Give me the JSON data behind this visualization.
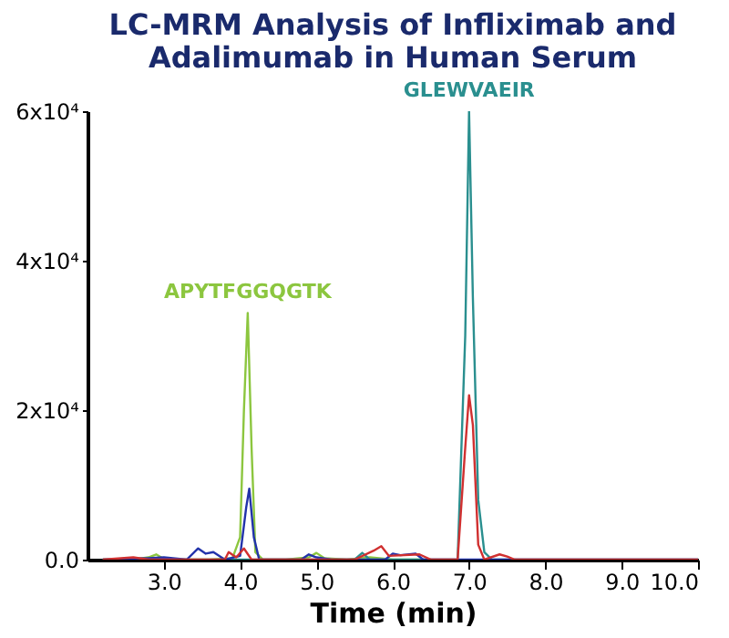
{
  "chart_data": {
    "type": "line",
    "title": "LC-MRM Analysis of Infliximab and Adalimumab in Human Serum",
    "xlabel": "Time (min)",
    "xlim": [
      2.0,
      10.0
    ],
    "ylim": [
      0,
      60000
    ],
    "xticks": [
      {
        "value": 3,
        "label": "3.0"
      },
      {
        "value": 4,
        "label": "4.0"
      },
      {
        "value": 5,
        "label": "5.0"
      },
      {
        "value": 6,
        "label": "6.0"
      },
      {
        "value": 7,
        "label": "7.0"
      },
      {
        "value": 8,
        "label": "8.0"
      },
      {
        "value": 9,
        "label": "9.0"
      },
      {
        "value": 10,
        "label": "10.0"
      }
    ],
    "yticks": [
      {
        "value": 0,
        "label": "0.0"
      },
      {
        "value": 20000,
        "label": "2x10⁴"
      },
      {
        "value": 40000,
        "label": "4x10⁴"
      },
      {
        "value": 60000,
        "label": "6x10⁴"
      }
    ],
    "grid": false,
    "legend": false,
    "marker": "none",
    "line_style": "solid",
    "series": [
      {
        "color": "#8cc63f",
        "x": [
          2.2,
          2.6,
          2.8,
          2.9,
          3.0,
          3.3,
          3.6,
          3.9,
          4.0,
          4.05,
          4.1,
          4.15,
          4.2,
          4.3,
          4.6,
          4.9,
          5.0,
          5.1,
          5.4,
          5.7,
          6.0,
          6.5
        ],
        "values": [
          0,
          0,
          300,
          700,
          100,
          0,
          0,
          200,
          3000,
          20000,
          33000,
          15000,
          1000,
          0,
          0,
          300,
          900,
          200,
          0,
          300,
          0,
          0
        ]
      },
      {
        "color": "#2a8f8f",
        "x": [
          2.2,
          5.5,
          5.6,
          5.7,
          6.85,
          6.95,
          7.0,
          7.05,
          7.12,
          7.2,
          7.3,
          10.0
        ],
        "values": [
          0,
          0,
          900,
          0,
          0,
          30000,
          60000,
          35000,
          8000,
          1000,
          0,
          0
        ]
      },
      {
        "color": "#2233aa",
        "x": [
          2.2,
          2.8,
          3.0,
          3.3,
          3.45,
          3.55,
          3.65,
          3.8,
          4.0,
          4.08,
          4.12,
          4.18,
          4.25,
          4.8,
          4.9,
          5.0,
          5.2,
          5.9,
          6.0,
          6.1,
          6.3,
          6.4,
          7.0,
          8.0,
          10.0
        ],
        "values": [
          0,
          200,
          300,
          0,
          1500,
          800,
          1000,
          0,
          500,
          7000,
          9500,
          3000,
          0,
          0,
          700,
          300,
          0,
          0,
          800,
          600,
          800,
          0,
          0,
          0,
          0
        ]
      },
      {
        "color": "#d03030",
        "x": [
          2.2,
          2.6,
          2.8,
          3.8,
          3.85,
          3.95,
          4.05,
          4.15,
          5.5,
          5.75,
          5.85,
          5.95,
          6.35,
          6.5,
          6.85,
          6.95,
          7.0,
          7.05,
          7.12,
          7.2,
          7.4,
          7.5,
          7.6,
          10.0
        ],
        "values": [
          0,
          300,
          0,
          0,
          1000,
          300,
          1500,
          0,
          0,
          1200,
          1800,
          500,
          700,
          0,
          0,
          15000,
          22000,
          18000,
          2000,
          0,
          700,
          400,
          0,
          0
        ]
      }
    ],
    "annotations": [
      {
        "text": "APYTFGGQGTK",
        "x": 4.1,
        "y": 33000
      },
      {
        "text": "GLEWVAEIR",
        "x": 7.0,
        "y": 60000
      }
    ]
  }
}
